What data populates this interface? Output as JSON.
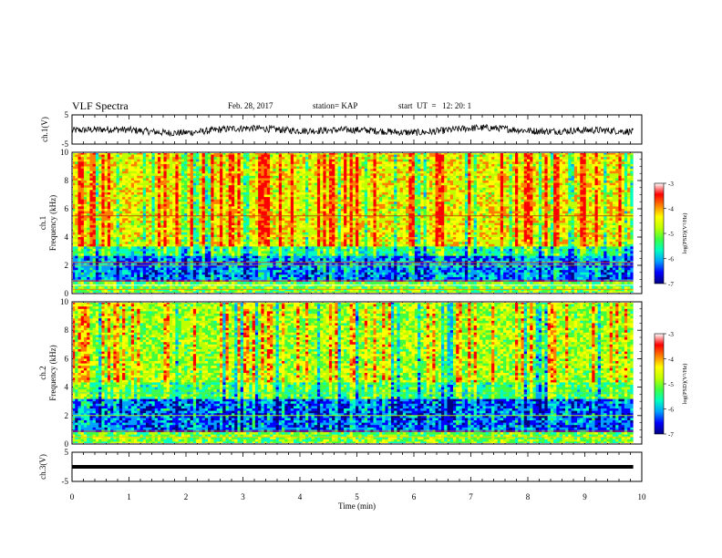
{
  "header": {
    "title": "VLF Spectra",
    "date": "Feb. 28, 2017",
    "station": "station= KAP",
    "start": "start  UT  =   12: 20: 1"
  },
  "chart_data": [
    {
      "type": "line",
      "panel": "ch1-waveform",
      "ylabel": "ch.1(V)",
      "ylim": [
        -5,
        5
      ],
      "yticks": [
        "5",
        "-5"
      ],
      "xlim": [
        0,
        10
      ],
      "description_series": {
        "color": "#000000",
        "mean": -0.3,
        "fluctuation": 1.2,
        "x_end": 9.85
      }
    },
    {
      "type": "heatmap",
      "panel": "ch1-spectrogram",
      "ylabel": "ch.1\nFrequency (kHz)",
      "ylabel_lines": [
        "ch.1",
        "Frequency (kHz)"
      ],
      "ylim": [
        0,
        10
      ],
      "yticks": [
        "0",
        "2",
        "4",
        "6",
        "8",
        "10"
      ],
      "xlim": [
        0,
        10
      ],
      "x_end": 9.85,
      "colorbar": {
        "label": "log(PSD)(V²/Hz)",
        "ticks": [
          "-3",
          "-4",
          "-5",
          "-6",
          "-7"
        ],
        "range": [
          -7,
          -3
        ]
      }
    },
    {
      "type": "heatmap",
      "panel": "ch2-spectrogram",
      "ylabel_lines": [
        "ch.2",
        "Frequency (kHz)"
      ],
      "ylim": [
        0,
        10
      ],
      "yticks": [
        "0",
        "2",
        "4",
        "6",
        "8",
        "10"
      ],
      "xlim": [
        0,
        10
      ],
      "x_end": 9.85,
      "colorbar": {
        "label": "log(PSD)(V²/Hz)",
        "ticks": [
          "-3",
          "-4",
          "-5",
          "-6",
          "-7"
        ],
        "range": [
          -7,
          -3
        ]
      }
    },
    {
      "type": "line",
      "panel": "ch3-waveform",
      "ylabel": "ch.3(V)",
      "ylim": [
        -5,
        5
      ],
      "yticks": [
        "5",
        "-5"
      ],
      "xlim": [
        0,
        10
      ],
      "series": [
        {
          "color": "#000000",
          "y": 0
        }
      ],
      "x_end": 9.85
    }
  ],
  "xaxis": {
    "label": "Time (min)",
    "ticks": [
      "0",
      "1",
      "2",
      "3",
      "4",
      "5",
      "6",
      "7",
      "8",
      "9",
      "10"
    ]
  },
  "colors": {
    "colormap": [
      "#000080",
      "#0000ff",
      "#00a0ff",
      "#00ffc0",
      "#40ff40",
      "#c0ff00",
      "#ffff00",
      "#ff8000",
      "#ff0000",
      "#ffffff"
    ]
  }
}
